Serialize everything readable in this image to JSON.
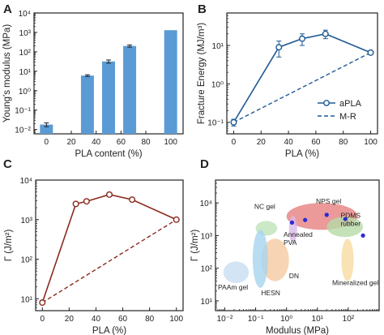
{
  "chart_data": [
    {
      "panel_label": "A",
      "type": "bar",
      "xlabel": "PLA content (%)",
      "ylabel": "Young's modulus (MPa)",
      "x_range": [
        -10,
        110
      ],
      "ylim": [
        0.006,
        10000
      ],
      "y_scale": "log",
      "x_ticks": [
        0,
        20,
        40,
        60,
        80,
        100
      ],
      "y_ticks": [
        {
          "v": 0.01,
          "label": "10⁻²"
        },
        {
          "v": 0.1,
          "label": "10⁻¹"
        },
        {
          "v": 1,
          "label": "10⁰"
        },
        {
          "v": 10,
          "label": "10¹"
        },
        {
          "v": 100,
          "label": "10²"
        },
        {
          "v": 1000,
          "label": "10³"
        },
        {
          "v": 10000,
          "label": "10⁴"
        }
      ],
      "x": [
        0,
        33,
        50,
        67,
        100
      ],
      "values": [
        0.018,
        6.0,
        32,
        200,
        1300
      ],
      "errors": [
        0.004,
        0.6,
        6,
        25,
        0
      ],
      "bar_color": "#5B9BD5"
    },
    {
      "panel_label": "B",
      "type": "line",
      "xlabel": "PLA (%)",
      "ylabel": "Fracture Energy (MJ/m³)",
      "x_range": [
        -5,
        105
      ],
      "ylim": [
        0.05,
        70
      ],
      "y_scale": "log",
      "x_ticks": [
        0,
        20,
        40,
        60,
        80,
        100
      ],
      "y_ticks": [
        {
          "v": 0.1,
          "label": "10⁻¹"
        },
        {
          "v": 1,
          "label": "10⁰"
        },
        {
          "v": 10,
          "label": "10¹"
        }
      ],
      "series": [
        {
          "name": "aPLA",
          "x": [
            0,
            33,
            50,
            67,
            100
          ],
          "y": [
            0.1,
            9,
            15,
            20,
            6.5
          ],
          "errors": [
            0.02,
            4,
            5,
            5,
            0
          ],
          "style": "solid-marker"
        },
        {
          "name": "M-R",
          "x": [
            0,
            100
          ],
          "y": [
            0.1,
            6.5
          ],
          "style": "dashed"
        }
      ],
      "legend_position": "bottom-right",
      "color": "#1F5A96"
    },
    {
      "panel_label": "C",
      "type": "line",
      "xlabel": "PLA (%)",
      "ylabel": "Γ (J/m²)",
      "x_range": [
        -5,
        105
      ],
      "ylim": [
        5,
        10000
      ],
      "y_scale": "log",
      "x_ticks": [
        0,
        20,
        40,
        60,
        80,
        100
      ],
      "y_ticks": [
        {
          "v": 10,
          "label": "10¹"
        },
        {
          "v": 100,
          "label": "10²"
        },
        {
          "v": 1000,
          "label": "10³"
        },
        {
          "v": 10000,
          "label": "10⁴"
        }
      ],
      "series": [
        {
          "x": [
            0,
            25,
            33,
            50,
            67,
            100
          ],
          "y": [
            8,
            2500,
            2900,
            4300,
            3200,
            1000
          ],
          "style": "solid-marker"
        },
        {
          "x": [
            0,
            100
          ],
          "y": [
            8,
            1000
          ],
          "style": "dashed"
        }
      ],
      "color": "#8B2A1E"
    },
    {
      "panel_label": "D",
      "type": "scatter",
      "xlabel": "Modulus (MPa)",
      "ylabel": "Γ (J/m²)",
      "x_scale": "log",
      "y_scale": "log",
      "xlim": [
        0.005,
        1000
      ],
      "ylim": [
        5,
        50000
      ],
      "x_ticks": [
        {
          "v": 0.01,
          "label": "10⁻²"
        },
        {
          "v": 0.1,
          "label": "10⁻¹"
        },
        {
          "v": 1,
          "label": "10⁰"
        },
        {
          "v": 10,
          "label": "10¹"
        },
        {
          "v": 100,
          "label": "10²"
        }
      ],
      "y_ticks": [
        {
          "v": 10,
          "label": "10¹"
        },
        {
          "v": 100,
          "label": "10²"
        },
        {
          "v": 1000,
          "label": "10³"
        },
        {
          "v": 10000,
          "label": "10⁴"
        }
      ],
      "regions": [
        {
          "label": "NC gel",
          "x_range": [
            0.1,
            0.5
          ],
          "y_range": [
            1000,
            2800
          ],
          "color": "#BEE3B8",
          "label_color": "#3E8E3E",
          "label_at": [
            0.09,
            6500
          ]
        },
        {
          "label": "NPS gel",
          "x_range": [
            1,
            200
          ],
          "y_range": [
            1500,
            10000
          ],
          "color": "#E68080",
          "label_color": "#C0282C",
          "label_at": [
            9,
            9500
          ]
        },
        {
          "label": "PDMS rubber",
          "x_range": [
            20,
            300
          ],
          "y_range": [
            900,
            3800
          ],
          "color": "#B7D9A6",
          "label_color": "#3E8E3E",
          "label_at": [
            250,
            3500
          ]
        },
        {
          "label": "Annealed PVA",
          "x_range": [
            1.2,
            2.2
          ],
          "y_range": [
            600,
            4000
          ],
          "color": "#D9B8E8",
          "label_color": "#8B2FA8",
          "label_at": [
            0.8,
            900
          ]
        },
        {
          "label": "DN",
          "x_range": [
            0.15,
            1.2
          ],
          "y_range": [
            40,
            800
          ],
          "color": "#F5C9A0",
          "label_color": "#E07B2A",
          "label_at": [
            1.2,
            50
          ]
        },
        {
          "label": "HESN",
          "x_range": [
            0.08,
            0.25
          ],
          "y_range": [
            25,
            1500
          ],
          "color": "#A6D4EF",
          "label_color": "#2B73B0",
          "label_at": [
            0.15,
            15
          ]
        },
        {
          "label": "PAAm gel",
          "x_range": [
            0.009,
            0.06
          ],
          "y_range": [
            35,
            160
          ],
          "color": "#C8DDF3",
          "label_color": "#222222",
          "label_at": [
            0.006,
            22
          ]
        },
        {
          "label": "Mineralized gel",
          "x_range": [
            60,
            150
          ],
          "y_range": [
            40,
            800
          ],
          "color": "#F7DBA0",
          "label_color": "#B8860B",
          "label_at": [
            30,
            30
          ]
        }
      ],
      "points": {
        "x": [
          1.5,
          4,
          20,
          80,
          300
        ],
        "y": [
          2500,
          3000,
          4300,
          3200,
          1000
        ],
        "color": "#2A2AD6"
      }
    }
  ]
}
